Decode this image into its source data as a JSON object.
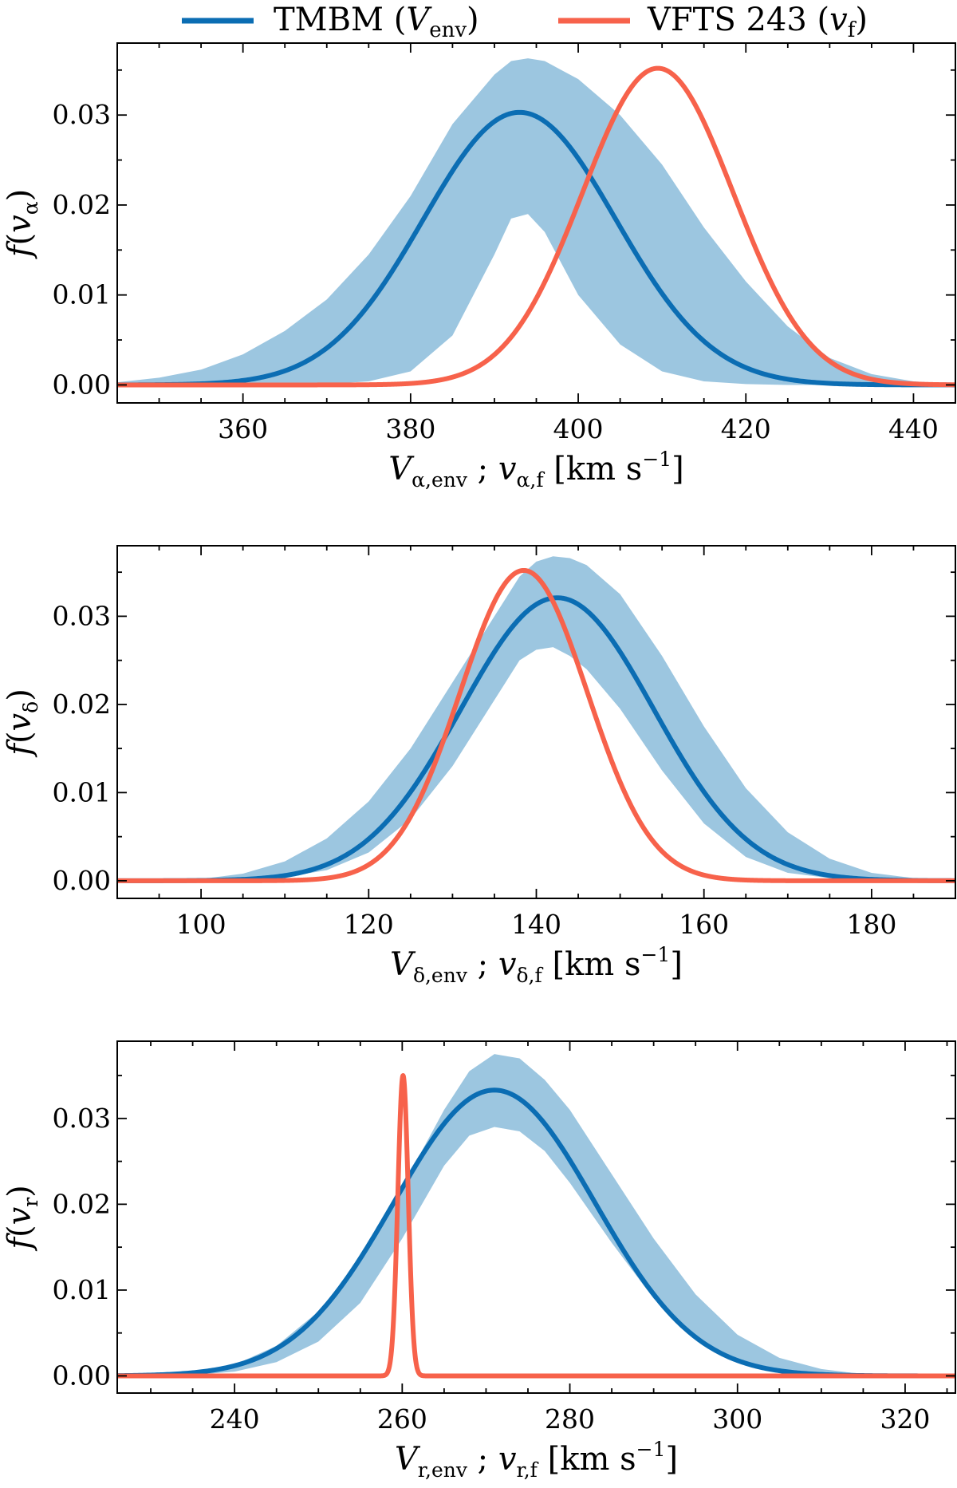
{
  "legend": {
    "placement": "top-center",
    "entries": [
      {
        "label": "TMBM",
        "sym": "V",
        "sub": "env",
        "color": "#0b6db3"
      },
      {
        "label": "VFTS 243",
        "sym": "v",
        "sub": "f",
        "color": "#f7624b"
      }
    ]
  },
  "band_color": "#9cc6e0",
  "chart_data": [
    {
      "type": "line",
      "id": "alpha",
      "ylabel": {
        "fn": "f",
        "var": "v",
        "sub": "α"
      },
      "xlabel": {
        "V": "V",
        "Vsub": "α,env",
        "v": "v",
        "vsub": "α,f",
        "unit": "km s",
        "exp": "−1"
      },
      "xlim": [
        345,
        445
      ],
      "ylim": [
        -0.002,
        0.038
      ],
      "xticks": [
        360,
        380,
        400,
        420,
        440
      ],
      "yticks": [
        0.0,
        0.01,
        0.02,
        0.03
      ],
      "ytick_labels": [
        "0.00",
        "0.01",
        "0.02",
        "0.03"
      ],
      "tmbm": {
        "mean": 393,
        "sigma": 11.5,
        "peak": 0.0303
      },
      "band": {
        "x": [
          345,
          350,
          355,
          360,
          365,
          370,
          375,
          380,
          385,
          390,
          392,
          394,
          396,
          398,
          400,
          405,
          410,
          415,
          420,
          425,
          430,
          435,
          440,
          445
        ],
        "upper": [
          0.0003,
          0.0008,
          0.0017,
          0.0034,
          0.006,
          0.0095,
          0.0145,
          0.021,
          0.029,
          0.0345,
          0.036,
          0.0363,
          0.036,
          0.035,
          0.034,
          0.03,
          0.0245,
          0.0175,
          0.0115,
          0.0065,
          0.003,
          0.0012,
          0.0004,
          0.0001
        ],
        "lower": [
          0.0,
          0.0,
          0.0,
          0.0,
          0.0,
          0.0001,
          0.0004,
          0.0015,
          0.0055,
          0.0145,
          0.0185,
          0.019,
          0.017,
          0.0135,
          0.01,
          0.0045,
          0.0015,
          0.0004,
          0.0001,
          0.0,
          0.0,
          0.0,
          0.0,
          0.0
        ]
      },
      "vfts": {
        "mean": 409.5,
        "sigma_left": 9.0,
        "sigma_right": 9.0,
        "peak": 0.0352
      }
    },
    {
      "type": "line",
      "id": "delta",
      "ylabel": {
        "fn": "f",
        "var": "v",
        "sub": "δ"
      },
      "xlabel": {
        "V": "V",
        "Vsub": "δ,env",
        "v": "v",
        "vsub": "δ,f",
        "unit": "km s",
        "exp": "−1"
      },
      "xlim": [
        90,
        190
      ],
      "ylim": [
        -0.002,
        0.038
      ],
      "xticks": [
        100,
        120,
        140,
        160,
        180
      ],
      "yticks": [
        0.0,
        0.01,
        0.02,
        0.03
      ],
      "ytick_labels": [
        "0.00",
        "0.01",
        "0.02",
        "0.03"
      ],
      "tmbm": {
        "mean": 142.5,
        "sigma": 11.5,
        "peak": 0.0321
      },
      "band": {
        "x": [
          90,
          100,
          105,
          110,
          115,
          120,
          125,
          130,
          135,
          138,
          140,
          142,
          144,
          146,
          150,
          155,
          160,
          165,
          170,
          175,
          180,
          185,
          190
        ],
        "upper": [
          0.0,
          0.0002,
          0.0008,
          0.0022,
          0.0048,
          0.009,
          0.015,
          0.0225,
          0.03,
          0.0345,
          0.0362,
          0.0368,
          0.0366,
          0.0358,
          0.0325,
          0.0255,
          0.0175,
          0.0105,
          0.0055,
          0.0025,
          0.0009,
          0.0003,
          0.0001
        ],
        "lower": [
          0.0,
          0.0,
          0.0001,
          0.0004,
          0.0012,
          0.0032,
          0.007,
          0.013,
          0.0205,
          0.025,
          0.0262,
          0.0265,
          0.0255,
          0.024,
          0.0195,
          0.0125,
          0.0065,
          0.0027,
          0.0009,
          0.0003,
          0.0001,
          0.0,
          0.0
        ]
      },
      "vfts": {
        "mean": 138.5,
        "sigma_left": 7.6,
        "sigma_right": 7.6,
        "peak": 0.0352
      }
    },
    {
      "type": "line",
      "id": "radial",
      "ylabel": {
        "fn": "f",
        "var": "v",
        "sub": "r"
      },
      "xlabel": {
        "V": "V",
        "Vsub": "r,env",
        "v": "v",
        "vsub": "r,f",
        "unit": "km s",
        "exp": "−1"
      },
      "xlim": [
        226,
        326
      ],
      "ylim": [
        -0.002,
        0.039
      ],
      "xticks": [
        240,
        260,
        280,
        300,
        320
      ],
      "yticks": [
        0.0,
        0.01,
        0.02,
        0.03
      ],
      "ytick_labels": [
        "0.00",
        "0.01",
        "0.02",
        "0.03"
      ],
      "tmbm": {
        "mean": 271,
        "sigma": 12.0,
        "peak": 0.0333
      },
      "band": {
        "x": [
          226,
          235,
          240,
          245,
          250,
          255,
          260,
          265,
          268,
          271,
          274,
          277,
          280,
          285,
          290,
          295,
          300,
          305,
          310,
          315,
          320,
          326
        ],
        "upper": [
          0.0,
          0.0004,
          0.0013,
          0.0035,
          0.0075,
          0.0135,
          0.022,
          0.031,
          0.0355,
          0.0375,
          0.037,
          0.0345,
          0.031,
          0.0235,
          0.016,
          0.0095,
          0.0048,
          0.0021,
          0.0008,
          0.0002,
          0.0001,
          0.0
        ],
        "lower": [
          0.0,
          0.0001,
          0.0005,
          0.0016,
          0.004,
          0.0085,
          0.016,
          0.0245,
          0.028,
          0.029,
          0.0285,
          0.0262,
          0.0225,
          0.0155,
          0.009,
          0.0045,
          0.0018,
          0.0006,
          0.0002,
          0.0,
          0.0,
          0.0
        ]
      },
      "vfts": {
        "mean": 260.1,
        "sigma_left": 0.62,
        "sigma_right": 0.62,
        "peak": 0.035
      }
    }
  ]
}
